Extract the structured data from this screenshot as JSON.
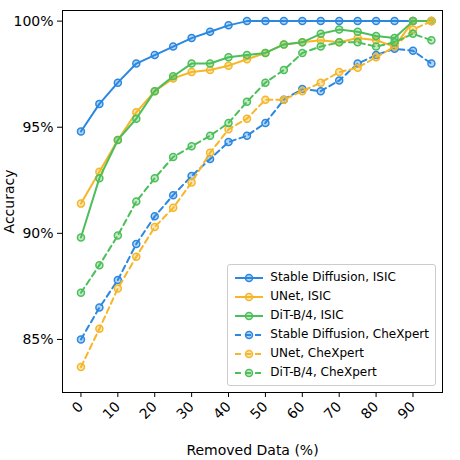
{
  "chart_data": {
    "type": "line",
    "x_label": "Removed Data (%)",
    "y_label": "Accuracy",
    "x": [
      0,
      5,
      10,
      15,
      20,
      25,
      30,
      35,
      40,
      45,
      50,
      55,
      60,
      65,
      70,
      75,
      80,
      85,
      90,
      95
    ],
    "xlim": [
      -5,
      98
    ],
    "xticks": [
      0,
      10,
      20,
      30,
      40,
      50,
      60,
      70,
      80,
      90
    ],
    "ylim": [
      82.5,
      100.5
    ],
    "yticks": [
      {
        "value": 85,
        "label": "85%"
      },
      {
        "value": 90,
        "label": "90%"
      },
      {
        "value": 95,
        "label": "95%"
      },
      {
        "value": 100,
        "label": "100%"
      }
    ],
    "grid": false,
    "legend": "lower right",
    "series": [
      {
        "name": "Stable Diffusion, ISIC",
        "color": "#2a88e0",
        "line_style": "solid",
        "marker": "circle",
        "values": [
          94.8,
          96.1,
          97.1,
          98.0,
          98.4,
          98.8,
          99.2,
          99.5,
          99.8,
          100,
          100,
          100,
          100,
          100,
          100,
          100,
          100,
          100,
          100,
          100
        ]
      },
      {
        "name": "UNet, ISIC",
        "color": "#f5b62a",
        "line_style": "solid",
        "marker": "circle",
        "values": [
          91.4,
          92.9,
          94.4,
          95.7,
          96.7,
          97.3,
          97.6,
          97.7,
          97.9,
          98.2,
          98.5,
          98.9,
          99.0,
          99.1,
          99.0,
          99.2,
          99.1,
          98.8,
          100,
          100
        ]
      },
      {
        "name": "DiT-B/4, ISIC",
        "color": "#4cbf5a",
        "line_style": "solid",
        "marker": "circle",
        "values": [
          89.8,
          92.6,
          94.4,
          95.4,
          96.7,
          97.4,
          98.0,
          98.0,
          98.3,
          98.4,
          98.5,
          98.9,
          99.0,
          99.4,
          99.6,
          99.5,
          99.3,
          99.2,
          100,
          100
        ]
      },
      {
        "name": "Stable Diffusion, CheXpert",
        "color": "#2a88e0",
        "line_style": "dashed",
        "marker": "circle",
        "values": [
          85.0,
          86.5,
          87.8,
          89.5,
          90.8,
          91.8,
          92.7,
          93.5,
          94.3,
          94.6,
          95.2,
          96.3,
          96.8,
          96.7,
          97.2,
          98.0,
          98.4,
          98.7,
          98.6,
          98.0
        ]
      },
      {
        "name": "UNet, CheXpert",
        "color": "#f5b62a",
        "line_style": "dashed",
        "marker": "circle",
        "values": [
          83.7,
          85.5,
          87.4,
          88.9,
          90.3,
          91.2,
          92.4,
          93.8,
          94.9,
          95.4,
          96.3,
          96.3,
          96.7,
          97.1,
          97.6,
          97.8,
          98.3,
          98.8,
          99.6,
          100
        ]
      },
      {
        "name": "DiT-B/4, CheXpert",
        "color": "#4cbf5a",
        "line_style": "dashed",
        "marker": "circle",
        "values": [
          87.2,
          88.5,
          89.9,
          91.5,
          92.6,
          93.6,
          94.1,
          94.6,
          95.2,
          96.2,
          97.1,
          97.7,
          98.5,
          98.8,
          99.0,
          99.0,
          98.8,
          99.0,
          99.4,
          99.1
        ]
      }
    ]
  }
}
